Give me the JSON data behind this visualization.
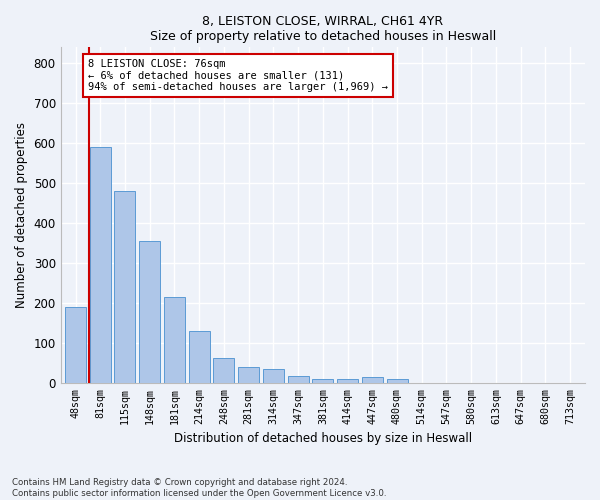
{
  "title1": "8, LEISTON CLOSE, WIRRAL, CH61 4YR",
  "title2": "Size of property relative to detached houses in Heswall",
  "xlabel": "Distribution of detached houses by size in Heswall",
  "ylabel": "Number of detached properties",
  "categories": [
    "48sqm",
    "81sqm",
    "115sqm",
    "148sqm",
    "181sqm",
    "214sqm",
    "248sqm",
    "281sqm",
    "314sqm",
    "347sqm",
    "381sqm",
    "414sqm",
    "447sqm",
    "480sqm",
    "514sqm",
    "547sqm",
    "580sqm",
    "613sqm",
    "647sqm",
    "680sqm",
    "713sqm"
  ],
  "values": [
    190,
    590,
    480,
    355,
    215,
    130,
    62,
    40,
    35,
    18,
    10,
    10,
    15,
    10,
    0,
    0,
    0,
    0,
    0,
    0,
    0
  ],
  "bar_color": "#aec6e8",
  "bar_edge_color": "#5b9bd5",
  "vline_color": "#cc0000",
  "annotation_text": "8 LEISTON CLOSE: 76sqm\n← 6% of detached houses are smaller (131)\n94% of semi-detached houses are larger (1,969) →",
  "annotation_box_color": "#ffffff",
  "annotation_box_edge": "#cc0000",
  "ylim": [
    0,
    840
  ],
  "yticks": [
    0,
    100,
    200,
    300,
    400,
    500,
    600,
    700,
    800
  ],
  "footer1": "Contains HM Land Registry data © Crown copyright and database right 2024.",
  "footer2": "Contains public sector information licensed under the Open Government Licence v3.0.",
  "bg_color": "#eef2f9",
  "grid_color": "#ffffff",
  "bar_width": 0.85,
  "vline_bar_index": 0.85
}
